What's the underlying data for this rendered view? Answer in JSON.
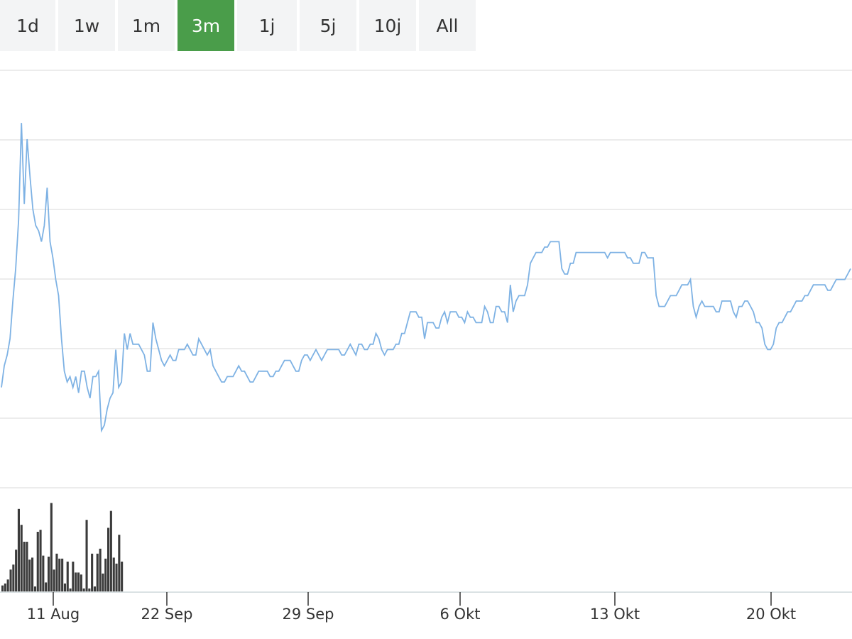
{
  "range_buttons": [
    {
      "label": "1d",
      "active": false
    },
    {
      "label": "1w",
      "active": false
    },
    {
      "label": "1m",
      "active": false
    },
    {
      "label": "3m",
      "active": true
    },
    {
      "label": "1j",
      "active": false
    },
    {
      "label": "5j",
      "active": false
    },
    {
      "label": "10j",
      "active": false
    },
    {
      "label": "All",
      "active": false
    }
  ],
  "colors": {
    "line": "#7eb2e4",
    "volume": "#3b3b3b",
    "grid": "#e6e6e6",
    "active_button": "#4a9d4a",
    "button_bg": "#f3f4f5"
  },
  "chart_data": {
    "type": "line",
    "title": "",
    "xlabel": "",
    "ylabel": "",
    "y_tick_labels_shown": false,
    "grid": true,
    "x_ticks": [
      "11 Aug",
      "22 Sep",
      "29 Sep",
      "6 Okt",
      "13 Okt",
      "20 Okt"
    ],
    "price_series": {
      "name": "",
      "note": "price level, relative scale (no y-axis labels shown)",
      "values": [
        79,
        83,
        85,
        88,
        95,
        101,
        110,
        128,
        113,
        125,
        118,
        112,
        109,
        108,
        106,
        109,
        116,
        106,
        103,
        99,
        96,
        88,
        82,
        80,
        81,
        79,
        81,
        78,
        82,
        82,
        79,
        77,
        81,
        81,
        82,
        71,
        72,
        75,
        77,
        78,
        86,
        79,
        80,
        89,
        86,
        89,
        87,
        87,
        87,
        86,
        85,
        82,
        82,
        91,
        88,
        86,
        84,
        83,
        84,
        85,
        84,
        84,
        86,
        86,
        86,
        87,
        86,
        85,
        85,
        88,
        87,
        86,
        85,
        86,
        83,
        82,
        81,
        80,
        80,
        81,
        81,
        81,
        82,
        83,
        82,
        82,
        81,
        80,
        80,
        81,
        82,
        82,
        82,
        82,
        81,
        81,
        82,
        82,
        83,
        84,
        84,
        84,
        83,
        82,
        82,
        84,
        85,
        85,
        84,
        85,
        86,
        85,
        84,
        85,
        86,
        86,
        86,
        86,
        86,
        85,
        85,
        86,
        87,
        86,
        85,
        87,
        87,
        86,
        86,
        87,
        87,
        89,
        88,
        86,
        85,
        86,
        86,
        86,
        87,
        87,
        89,
        89,
        91,
        93,
        93,
        93,
        92,
        92,
        88,
        91,
        91,
        91,
        90,
        90,
        92,
        93,
        91,
        93,
        93,
        93,
        92,
        92,
        91,
        93,
        92,
        92,
        91,
        91,
        91,
        94,
        93,
        91,
        91,
        94,
        94,
        93,
        93,
        91,
        98,
        93,
        95,
        96,
        96,
        96,
        98,
        102,
        103,
        104,
        104,
        104,
        105,
        105,
        106,
        106,
        106,
        106,
        101,
        100,
        100,
        102,
        102,
        104,
        104,
        104,
        104,
        104,
        104,
        104,
        104,
        104,
        104,
        104,
        103,
        104,
        104,
        104,
        104,
        104,
        104,
        103,
        103,
        102,
        102,
        102,
        104,
        104,
        103,
        103,
        103,
        96,
        94,
        94,
        94,
        95,
        96,
        96,
        96,
        97,
        98,
        98,
        98,
        99,
        94,
        92,
        94,
        95,
        94,
        94,
        94,
        94,
        93,
        93,
        95,
        95,
        95,
        95,
        93,
        92,
        94,
        94,
        95,
        95,
        94,
        93,
        91,
        91,
        90,
        87,
        86,
        86,
        87,
        90,
        91,
        91,
        92,
        93,
        93,
        94,
        95,
        95,
        95,
        96,
        96,
        97,
        98,
        98,
        98,
        98,
        98,
        97,
        97,
        98,
        99,
        99,
        99,
        99,
        100,
        101
      ]
    },
    "volume_series": {
      "name": "",
      "note": "trading volume, relative scale",
      "values": [
        6,
        8,
        12,
        22,
        27,
        42,
        83,
        67,
        50,
        50,
        32,
        34,
        5,
        60,
        62,
        36,
        9,
        35,
        89,
        22,
        38,
        33,
        33,
        8,
        30,
        3,
        30,
        19,
        19,
        17,
        3,
        72,
        3,
        38,
        5,
        38,
        43,
        18,
        33,
        64,
        81,
        34,
        28,
        57,
        30,
        0,
        0,
        0,
        0,
        0,
        0,
        0,
        0,
        0,
        0,
        0,
        0,
        0,
        0,
        0,
        0,
        0,
        0,
        0,
        0,
        0,
        0,
        0,
        0,
        0,
        0,
        0,
        0,
        0,
        0,
        0,
        0,
        0,
        0,
        0,
        0,
        0,
        0,
        0,
        0,
        0,
        0,
        0,
        0,
        0,
        0,
        0,
        0,
        0,
        0,
        0,
        0,
        0,
        0,
        0,
        0,
        0,
        0,
        0,
        0,
        0,
        0,
        0,
        0,
        0,
        0,
        0,
        0,
        0,
        0,
        0,
        0,
        0,
        0,
        0,
        0,
        0,
        0,
        0,
        0,
        0,
        0,
        0,
        0,
        0,
        0,
        0,
        0,
        0,
        0,
        0,
        0,
        0,
        0,
        0,
        0,
        0,
        0,
        0,
        0,
        0,
        0,
        0,
        0,
        0,
        0,
        0,
        0,
        0,
        0,
        0,
        0,
        0,
        0,
        0,
        0,
        0,
        0,
        0,
        0,
        0,
        0,
        0,
        0,
        0,
        0,
        0,
        0,
        0,
        0,
        0,
        0,
        0,
        0,
        0,
        0,
        0,
        0,
        0,
        0,
        0,
        0,
        0,
        0,
        0,
        0,
        0,
        0,
        0,
        0,
        0,
        0,
        0,
        0,
        0,
        0,
        0,
        0,
        0,
        0,
        0,
        0,
        0,
        0,
        0,
        0,
        0,
        0,
        0,
        0,
        0,
        0,
        0,
        0,
        0,
        0,
        0,
        0,
        0,
        0,
        0,
        0,
        0,
        0,
        0,
        0,
        0,
        0,
        0,
        0,
        0,
        0,
        0,
        0,
        0,
        0,
        0,
        0,
        0,
        0,
        0,
        0,
        0,
        0,
        0,
        0,
        0,
        0,
        0,
        0,
        0,
        0,
        0,
        0,
        0,
        0,
        0,
        0,
        0,
        0,
        0,
        0,
        0,
        0,
        0,
        0,
        0,
        0,
        0,
        0,
        0,
        0,
        0,
        0,
        0,
        0,
        0,
        0,
        0,
        0,
        0,
        0,
        0,
        0,
        0,
        0,
        0,
        0,
        0,
        0,
        0,
        0,
        0,
        0,
        0,
        0,
        0,
        0,
        0,
        0,
        0,
        0,
        0,
        0,
        0,
        0,
        0,
        0
      ]
    }
  }
}
